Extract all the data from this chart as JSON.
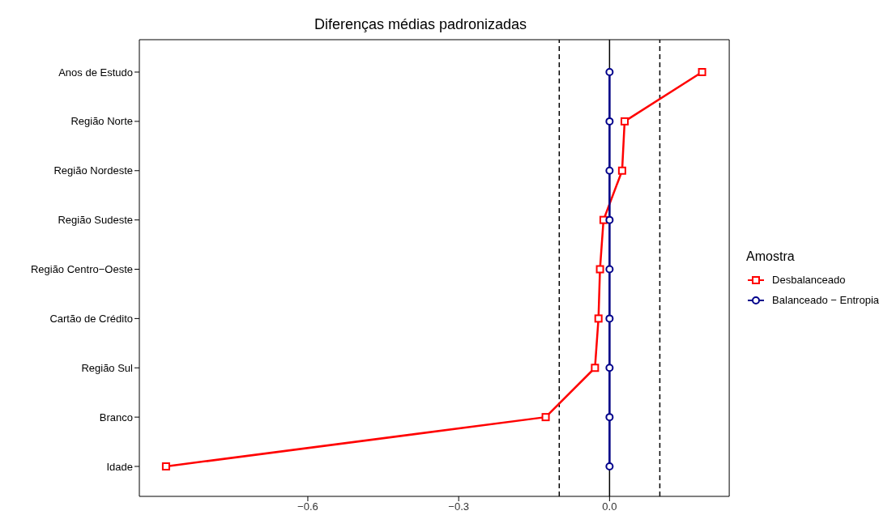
{
  "chart_data": {
    "type": "line",
    "orientation": "horizontal",
    "title": "Diferenças médias padronizadas",
    "legend_title": "Amostra",
    "categories": [
      "Anos de Estudo",
      "Região Norte",
      "Região Nordeste",
      "Região Sudeste",
      "Região Centro−Oeste",
      "Cartão de Crédito",
      "Região Sul",
      "Branco",
      "Idade"
    ],
    "series": [
      {
        "name": "Desbalanceado",
        "color": "#ff0000",
        "marker": "square",
        "values": [
          0.184,
          0.03,
          0.025,
          -0.012,
          -0.019,
          -0.022,
          -0.029,
          -0.127,
          -0.882
        ]
      },
      {
        "name": "Balanceado − Entropia",
        "color": "#00008b",
        "marker": "circle",
        "values": [
          0,
          0,
          0,
          0,
          0,
          0,
          0,
          0,
          0
        ]
      }
    ],
    "xlim": [
      -0.935,
      0.238
    ],
    "xticks": [
      {
        "value": -0.6,
        "label": "−0.6"
      },
      {
        "value": -0.3,
        "label": "−0.3"
      },
      {
        "value": 0,
        "label": "0.0"
      }
    ],
    "ref_lines": [
      {
        "axis": "x",
        "value": -0.1,
        "color": "#000000",
        "line_style": "dashed"
      },
      {
        "axis": "x",
        "value": 0.1,
        "color": "#000000",
        "line_style": "dashed"
      },
      {
        "axis": "x",
        "value": 0,
        "color": "#000000",
        "line_style": "solid"
      }
    ],
    "grid": false,
    "legend": "right",
    "line_style": "solid"
  }
}
